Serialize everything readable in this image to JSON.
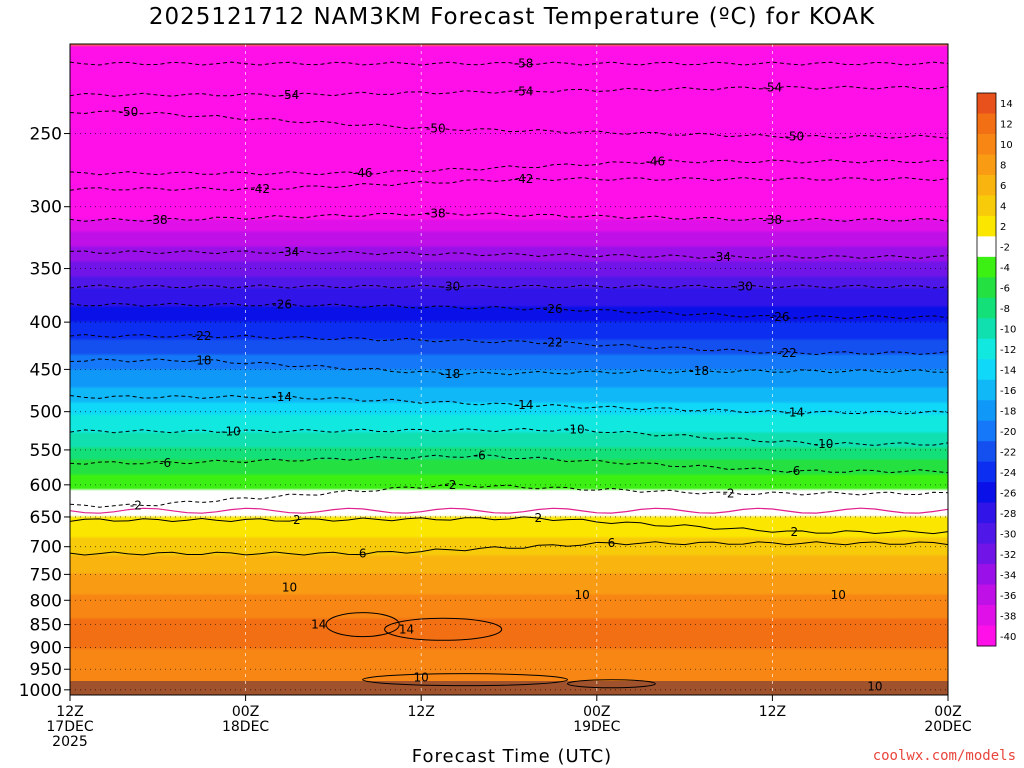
{
  "title": "2025121712 NAM3KM Forecast Temperature (ºC) for KOAK",
  "xlabel": "Forecast Time (UTC)",
  "credit": "coolwx.com/models",
  "chart_data": {
    "type": "heatmap",
    "title": "2025121712 NAM3KM Forecast Temperature (ºC) for KOAK",
    "xlabel": "Forecast Time (UTC)",
    "ylabel": "",
    "x_ticks": [
      {
        "hour": 0,
        "lines": [
          "12Z",
          "17DEC",
          "2025"
        ]
      },
      {
        "hour": 12,
        "lines": [
          "00Z",
          "18DEC"
        ]
      },
      {
        "hour": 24,
        "lines": [
          "12Z"
        ]
      },
      {
        "hour": 36,
        "lines": [
          "00Z",
          "19DEC"
        ]
      },
      {
        "hour": 48,
        "lines": [
          "12Z"
        ]
      },
      {
        "hour": 60,
        "lines": [
          "00Z",
          "20DEC"
        ]
      }
    ],
    "xlim_hours": [
      0,
      60
    ],
    "y_ticks": [
      250,
      300,
      350,
      400,
      450,
      500,
      550,
      600,
      650,
      700,
      750,
      800,
      850,
      900,
      950,
      1000
    ],
    "ylim_hPa": [
      1013,
      200
    ],
    "y_scale": "log-pressure",
    "grid": true,
    "colorbar_labels": [
      "14",
      "12",
      "10",
      "8",
      "6",
      "4",
      "2",
      "-2",
      "-4",
      "-6",
      "-8",
      "-10",
      "-12",
      "-14",
      "-16",
      "-18",
      "-20",
      "-22",
      "-24",
      "-26",
      "-28",
      "-30",
      "-32",
      "-34",
      "-36",
      "-38",
      "-40"
    ],
    "colorbar_colors": [
      "#e8511c",
      "#f26f14",
      "#f88614",
      "#fa9b14",
      "#f9b410",
      "#f8cb0a",
      "#fbe600",
      "#ffffff",
      "#3cf014",
      "#24e040",
      "#14e07a",
      "#10e0b0",
      "#10e8e0",
      "#10d8f8",
      "#10b8f8",
      "#1098f8",
      "#1478f8",
      "#1450f0",
      "#0c2ef0",
      "#0a10e8",
      "#3014e8",
      "#5018e8",
      "#7014e8",
      "#9a10e8",
      "#c010e8",
      "#e010e8",
      "#ff10e8"
    ],
    "temperature_levels_C": [
      {
        "p": 200,
        "t": -60
      },
      {
        "p": 225,
        "t": -55
      },
      {
        "p": 250,
        "t": -50
      },
      {
        "p": 275,
        "t": -45
      },
      {
        "p": 300,
        "t": -40
      },
      {
        "p": 325,
        "t": -35
      },
      {
        "p": 350,
        "t": -31
      },
      {
        "p": 375,
        "t": -27
      },
      {
        "p": 400,
        "t": -24
      },
      {
        "p": 425,
        "t": -21
      },
      {
        "p": 450,
        "t": -18
      },
      {
        "p": 475,
        "t": -15.5
      },
      {
        "p": 500,
        "t": -12.5
      },
      {
        "p": 525,
        "t": -10
      },
      {
        "p": 550,
        "t": -7.5
      },
      {
        "p": 575,
        "t": -5
      },
      {
        "p": 600,
        "t": -2.5
      },
      {
        "p": 625,
        "t": 0
      },
      {
        "p": 650,
        "t": 2
      },
      {
        "p": 700,
        "t": 5
      },
      {
        "p": 750,
        "t": 8
      },
      {
        "p": 800,
        "t": 10.5
      },
      {
        "p": 850,
        "t": 12.5
      },
      {
        "p": 900,
        "t": 12
      },
      {
        "p": 950,
        "t": 11
      },
      {
        "p": 1000,
        "t": 11.5
      }
    ],
    "contour_labels": [
      {
        "value": "-58",
        "hour": 31,
        "p": 210
      },
      {
        "value": "-54",
        "hour": 15,
        "p": 227
      },
      {
        "value": "-54",
        "hour": 31,
        "p": 225
      },
      {
        "value": "-54",
        "hour": 48,
        "p": 223
      },
      {
        "value": "-50",
        "hour": 4,
        "p": 237
      },
      {
        "value": "-50",
        "hour": 25,
        "p": 247
      },
      {
        "value": "-50",
        "hour": 49.5,
        "p": 252
      },
      {
        "value": "-46",
        "hour": 20,
        "p": 276
      },
      {
        "value": "-46",
        "hour": 40,
        "p": 268
      },
      {
        "value": "-42",
        "hour": 13,
        "p": 287
      },
      {
        "value": "-42",
        "hour": 31,
        "p": 280
      },
      {
        "value": "-38",
        "hour": 6,
        "p": 310
      },
      {
        "value": "-38",
        "hour": 25,
        "p": 305
      },
      {
        "value": "-38",
        "hour": 48,
        "p": 310
      },
      {
        "value": "-34",
        "hour": 15,
        "p": 336
      },
      {
        "value": "-34",
        "hour": 44.5,
        "p": 340
      },
      {
        "value": "-30",
        "hour": 26,
        "p": 366
      },
      {
        "value": "-30",
        "hour": 46,
        "p": 366
      },
      {
        "value": "-26",
        "hour": 14.5,
        "p": 383
      },
      {
        "value": "-26",
        "hour": 33,
        "p": 387
      },
      {
        "value": "-26",
        "hour": 48.5,
        "p": 395
      },
      {
        "value": "-22",
        "hour": 9,
        "p": 414
      },
      {
        "value": "-22",
        "hour": 33,
        "p": 421
      },
      {
        "value": "-22",
        "hour": 49,
        "p": 432
      },
      {
        "value": "-18",
        "hour": 9,
        "p": 440
      },
      {
        "value": "-18",
        "hour": 26,
        "p": 455
      },
      {
        "value": "-18",
        "hour": 43,
        "p": 452
      },
      {
        "value": "-14",
        "hour": 14.5,
        "p": 482
      },
      {
        "value": "-14",
        "hour": 31,
        "p": 492
      },
      {
        "value": "-14",
        "hour": 49.5,
        "p": 501
      },
      {
        "value": "-10",
        "hour": 11,
        "p": 525
      },
      {
        "value": "-10",
        "hour": 34.5,
        "p": 523
      },
      {
        "value": "-10",
        "hour": 51.5,
        "p": 542
      },
      {
        "value": "-6",
        "hour": 6.5,
        "p": 568
      },
      {
        "value": "-6",
        "hour": 28,
        "p": 558
      },
      {
        "value": "-6",
        "hour": 49.5,
        "p": 580
      },
      {
        "value": "-2",
        "hour": 4.5,
        "p": 632
      },
      {
        "value": "-2",
        "hour": 26,
        "p": 600
      },
      {
        "value": "-2",
        "hour": 45,
        "p": 613
      },
      {
        "value": "2",
        "hour": 15.5,
        "p": 655
      },
      {
        "value": "2",
        "hour": 32,
        "p": 652
      },
      {
        "value": "2",
        "hour": 49.5,
        "p": 675
      },
      {
        "value": "6",
        "hour": 20,
        "p": 712
      },
      {
        "value": "6",
        "hour": 37,
        "p": 694
      },
      {
        "value": "10",
        "hour": 15,
        "p": 775
      },
      {
        "value": "10",
        "hour": 35,
        "p": 790
      },
      {
        "value": "10",
        "hour": 52.5,
        "p": 790
      },
      {
        "value": "10",
        "hour": 24,
        "p": 970
      },
      {
        "value": "10",
        "hour": 55,
        "p": 992
      },
      {
        "value": "14",
        "hour": 17,
        "p": 850
      },
      {
        "value": "14",
        "hour": 23,
        "p": 860
      }
    ]
  }
}
